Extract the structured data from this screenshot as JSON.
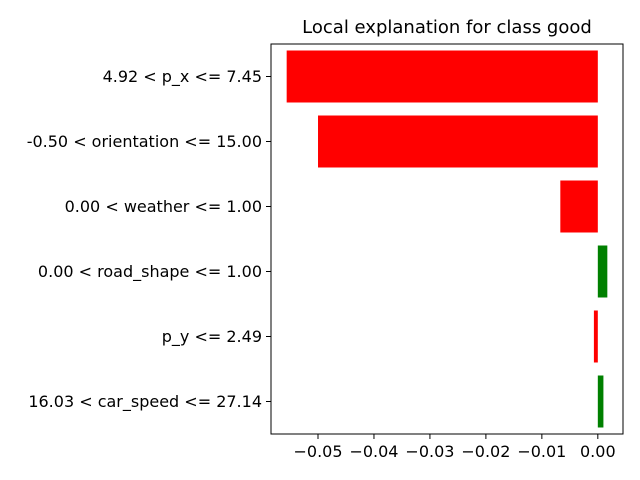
{
  "chart_data": {
    "type": "bar",
    "orientation": "horizontal",
    "title": "Local explanation for class good",
    "xlabel": "",
    "ylabel": "",
    "categories": [
      "4.92 < p_x <= 7.45",
      "-0.50 < orientation <= 15.00",
      "0.00 < weather <= 1.00",
      "0.00 < road_shape <= 1.00",
      "p_y <= 2.49",
      "16.03 < car_speed <= 27.14"
    ],
    "values": [
      -0.0556,
      -0.05,
      -0.0067,
      0.0017,
      -0.0007,
      0.001
    ],
    "colors": [
      "#ff0000",
      "#ff0000",
      "#ff0000",
      "#008000",
      "#ff0000",
      "#008000"
    ],
    "xlim": [
      -0.0584,
      0.0045
    ],
    "xticks": [
      -0.05,
      -0.04,
      -0.03,
      -0.02,
      -0.01,
      0.0
    ],
    "xtick_labels": [
      "−0.05",
      "−0.04",
      "−0.03",
      "−0.02",
      "−0.01",
      "0.00"
    ],
    "grid": false,
    "legend": "none"
  }
}
